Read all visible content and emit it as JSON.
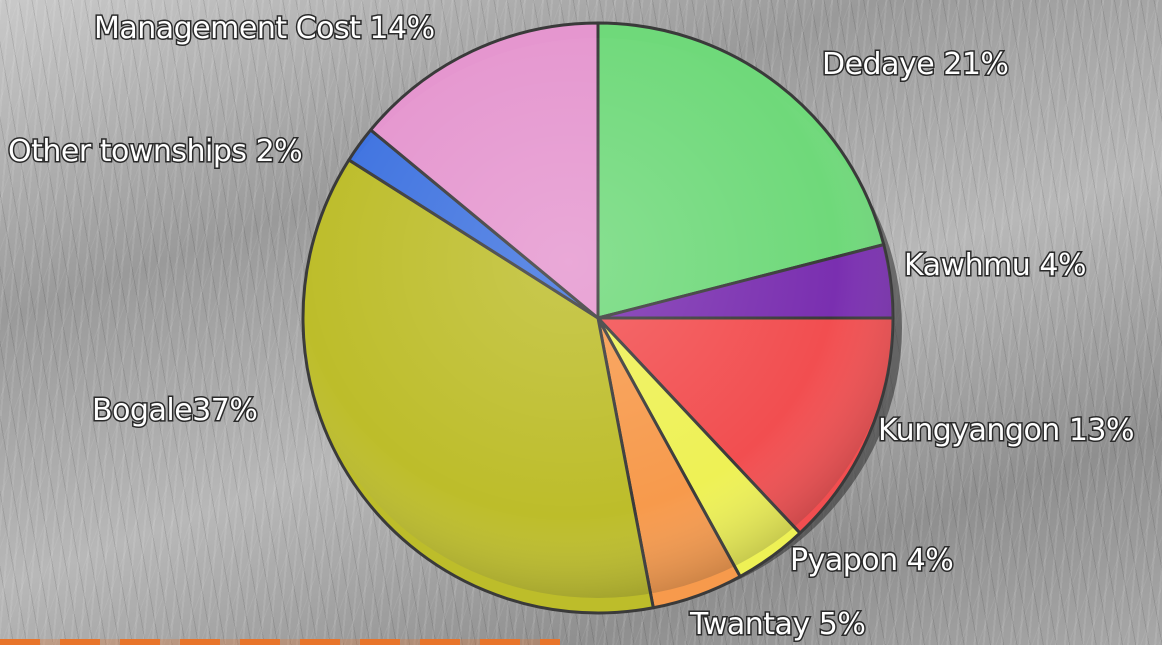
{
  "chart_data": {
    "type": "pie",
    "title": "",
    "start_angle_deg": 0,
    "direction": "clockwise",
    "slices": [
      {
        "label": "Dedaye 21%",
        "value": 21,
        "color": "#6fd97a"
      },
      {
        "label": "Kawhmu 4%",
        "value": 4,
        "color": "#7a2fb0"
      },
      {
        "label": "Kungyangon 13%",
        "value": 13,
        "color": "#f24e50"
      },
      {
        "label": "Pyapon 4%",
        "value": 4,
        "color": "#eef155"
      },
      {
        "label": "Twantay 5%",
        "value": 5,
        "color": "#f79a4c"
      },
      {
        "label": "Bogale37%",
        "value": 37,
        "color": "#bdbd2a"
      },
      {
        "label": "Other townships 2%",
        "value": 2,
        "color": "#3f73e0"
      },
      {
        "label": "Management Cost 14%",
        "value": 14,
        "color": "#e596cf"
      }
    ]
  }
}
